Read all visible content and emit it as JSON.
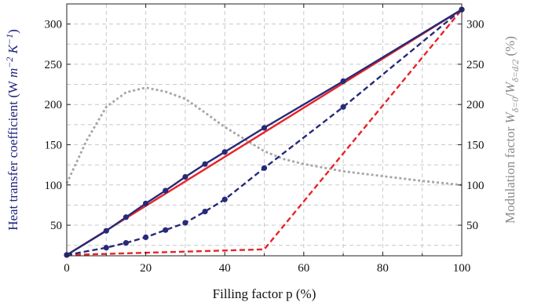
{
  "chart_data": {
    "type": "line",
    "xlabel": "Filling factor p (%)",
    "ylabel": "Heat transfer coefficient (W m⁻² K⁻¹)",
    "y2label": "Modulation factor Wδ=0/Wδ=d/2 (%)",
    "xlim": [
      0,
      100
    ],
    "ylim": [
      12,
      325
    ],
    "y2lim": [
      12,
      325
    ],
    "xticks": [
      0,
      20,
      40,
      60,
      80,
      100
    ],
    "yticks": [
      50,
      100,
      150,
      200,
      250,
      300
    ],
    "y2ticks": [
      50,
      100,
      150,
      200,
      250,
      300
    ],
    "grid": true,
    "colors": {
      "navy": "#262a78",
      "red": "#e8232a",
      "gray": "#a6a6a6",
      "y2label": "#8c8c8c",
      "ylabel": "#1d237a"
    },
    "series": [
      {
        "axis": "left",
        "style": "solid-markers",
        "color": "#262a78",
        "x": [
          0,
          10,
          15,
          20,
          25,
          30,
          35,
          40,
          50,
          70,
          100
        ],
        "y": [
          13,
          43,
          60,
          77,
          93,
          110,
          126,
          141,
          171,
          229,
          318
        ]
      },
      {
        "axis": "left",
        "style": "dashed-markers",
        "color": "#262a78",
        "x": [
          0,
          10,
          15,
          20,
          25,
          30,
          35,
          40,
          50,
          70,
          100
        ],
        "y": [
          13,
          22,
          28,
          35,
          44,
          53,
          67,
          82,
          121,
          197,
          318
        ]
      },
      {
        "axis": "left",
        "style": "solid",
        "color": "#e8232a",
        "x": [
          0,
          100
        ],
        "y": [
          13,
          318
        ]
      },
      {
        "axis": "left",
        "style": "dashed",
        "color": "#e8232a",
        "x": [
          0,
          50,
          100
        ],
        "y": [
          13,
          20,
          318
        ]
      },
      {
        "axis": "right",
        "style": "dotted",
        "color": "#a6a6a6",
        "x": [
          0,
          5,
          10,
          15,
          20,
          25,
          30,
          35,
          40,
          45,
          50,
          55,
          60,
          70,
          80,
          90,
          100
        ],
        "y": [
          102,
          155,
          197,
          215,
          221,
          216,
          207,
          190,
          172,
          157,
          142,
          132,
          126,
          117,
          111,
          105,
          100
        ]
      }
    ]
  }
}
